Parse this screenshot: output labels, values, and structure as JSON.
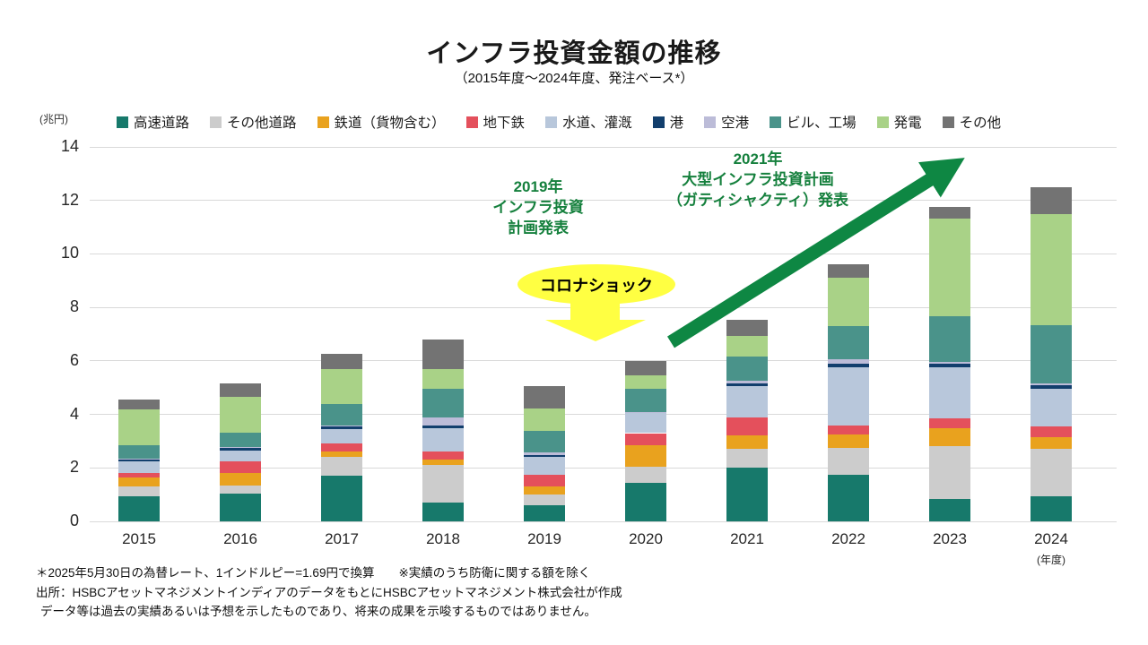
{
  "title": "インフラ投資金額の推移",
  "subtitle": "（2015年度～2024年度、発注ベース*）",
  "y_axis_unit": "(兆円)",
  "x_axis_unit": "(年度)",
  "colors": {
    "accent_green": "#0E8743",
    "annotation_text_green": "#15803D",
    "highlight_yellow": "#FFFF42",
    "gridline": "#D9D9D9"
  },
  "annotations": {
    "plan2019": {
      "lines": [
        "2019年",
        "インフラ投資",
        "計画発表"
      ]
    },
    "plan2021": {
      "lines": [
        "2021年",
        "大型インフラ投資計画",
        "（ガティシャクティ）発表"
      ]
    },
    "covid_label": "コロナショック"
  },
  "chart_data": {
    "type": "bar",
    "stacked": true,
    "grid": true,
    "legend_position": "top",
    "ylabel": "兆円",
    "ylim": [
      0,
      14
    ],
    "ytick_step": 2,
    "categories": [
      "2015",
      "2016",
      "2017",
      "2018",
      "2019",
      "2020",
      "2021",
      "2022",
      "2023",
      "2024"
    ],
    "series": [
      {
        "name": "高速道路",
        "color": "#17796B",
        "values": [
          0.95,
          1.05,
          1.7,
          0.7,
          0.6,
          1.45,
          2.0,
          1.75,
          0.85,
          0.95
        ]
      },
      {
        "name": "その他道路",
        "color": "#CCCCCC",
        "values": [
          0.35,
          0.3,
          0.7,
          1.4,
          0.4,
          0.6,
          0.7,
          1.0,
          1.95,
          1.75
        ]
      },
      {
        "name": "鉄道（貨物含む）",
        "color": "#E9A21E",
        "values": [
          0.35,
          0.45,
          0.2,
          0.2,
          0.3,
          0.8,
          0.5,
          0.5,
          0.7,
          0.45
        ]
      },
      {
        "name": "地下鉄",
        "color": "#E4505C",
        "values": [
          0.15,
          0.45,
          0.3,
          0.3,
          0.45,
          0.45,
          0.7,
          0.35,
          0.35,
          0.4
        ]
      },
      {
        "name": "水道、灌漑",
        "color": "#B8C7DB",
        "values": [
          0.45,
          0.4,
          0.55,
          0.9,
          0.65,
          0.75,
          1.15,
          2.15,
          1.9,
          1.4
        ]
      },
      {
        "name": "港",
        "color": "#123F6D",
        "values": [
          0.08,
          0.1,
          0.1,
          0.07,
          0.07,
          0.03,
          0.12,
          0.14,
          0.13,
          0.15
        ]
      },
      {
        "name": "空港",
        "color": "#BCBCD8",
        "values": [
          0.02,
          0.02,
          0.03,
          0.33,
          0.1,
          0.02,
          0.08,
          0.16,
          0.09,
          0.05
        ]
      },
      {
        "name": "ビル、工場",
        "color": "#4A938A",
        "values": [
          0.5,
          0.55,
          0.8,
          1.05,
          0.8,
          0.85,
          0.9,
          1.25,
          1.7,
          2.2
        ]
      },
      {
        "name": "発電",
        "color": "#A9D287",
        "values": [
          1.35,
          1.35,
          1.3,
          0.75,
          0.85,
          0.5,
          0.8,
          1.8,
          3.65,
          4.15
        ]
      },
      {
        "name": "その他",
        "color": "#737373",
        "values": [
          0.35,
          0.5,
          0.58,
          1.1,
          0.83,
          0.55,
          0.6,
          0.5,
          0.45,
          1.0
        ]
      }
    ]
  },
  "footnotes": [
    "＊2025年5月30日の為替レート、1インドルピー=1.69円で換算　　※実績のうち防衛に関する額を除く",
    "出所：HSBCアセットマネジメントインディアのデータをもとにHSBCアセットマネジメント株式会社が作成",
    "データ等は過去の実績あるいは予想を示したものであり、将来の成果を示唆するものではありません。"
  ]
}
